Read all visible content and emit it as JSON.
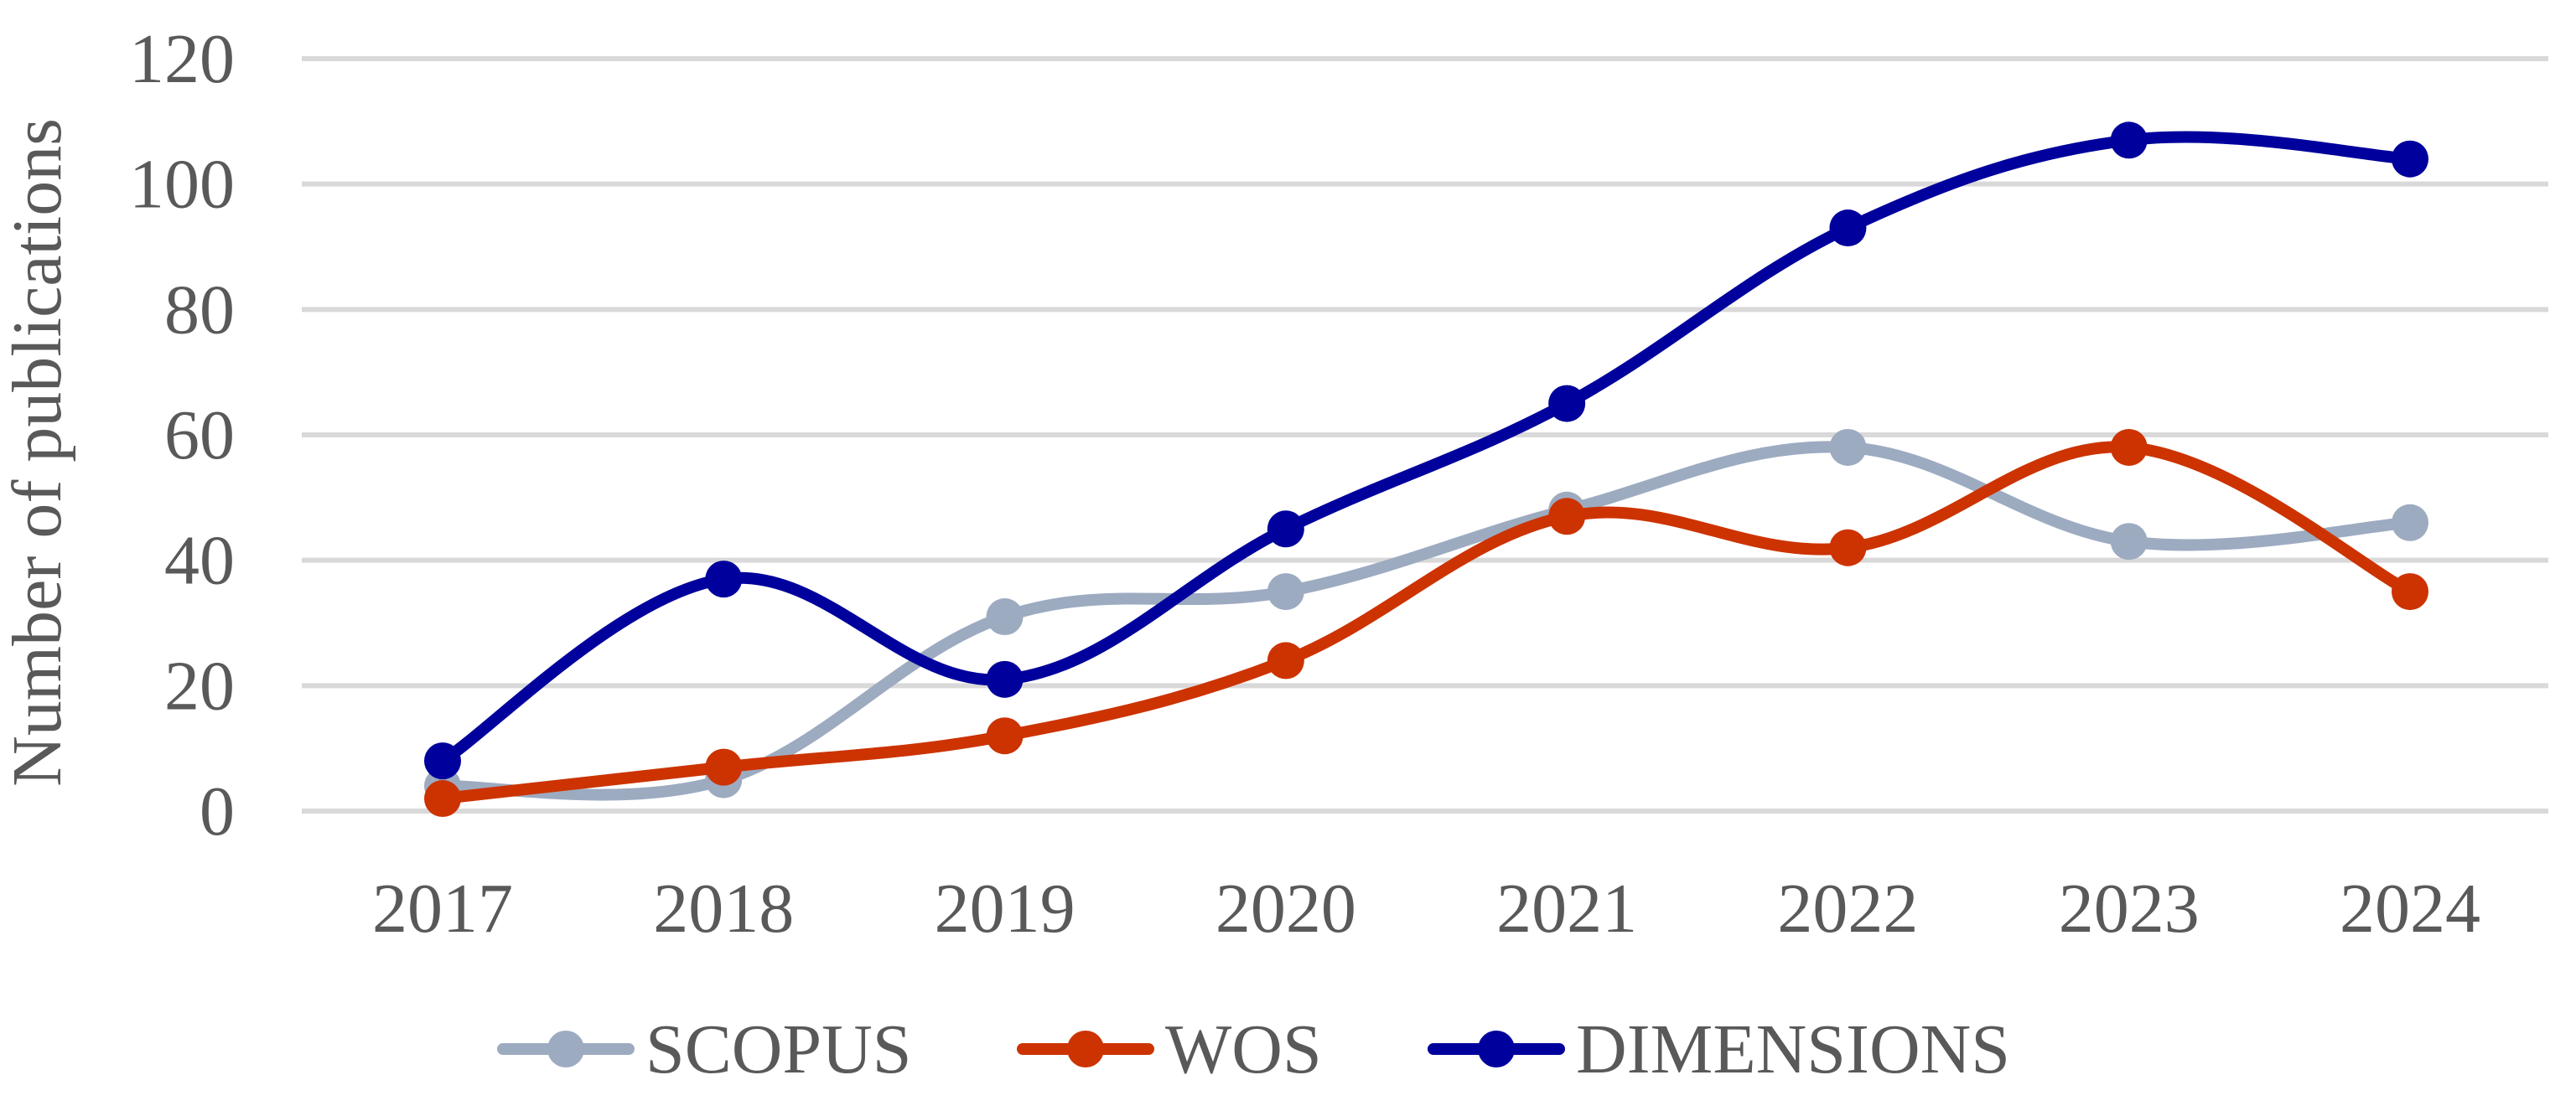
{
  "chart_data": {
    "type": "line",
    "title": "",
    "xlabel": "",
    "ylabel": "Number of publications",
    "categories": [
      "2017",
      "2018",
      "2019",
      "2020",
      "2021",
      "2022",
      "2023",
      "2024"
    ],
    "ylim": [
      0,
      120
    ],
    "yticks": [
      "0",
      "20",
      "40",
      "60",
      "80",
      "100",
      "120"
    ],
    "grid": true,
    "smooth": true,
    "legend_position": "bottom",
    "series": [
      {
        "name": "SCOPUS",
        "color": "#9dabc1",
        "values": [
          4,
          5,
          31,
          35,
          48,
          58,
          43,
          46
        ]
      },
      {
        "name": "WOS",
        "color": "#cc3300",
        "values": [
          2,
          7,
          12,
          24,
          47,
          42,
          58,
          35
        ]
      },
      {
        "name": "DIMENSIONS",
        "color": "#00009c",
        "values": [
          8,
          37,
          21,
          45,
          65,
          93,
          107,
          104
        ]
      }
    ]
  }
}
